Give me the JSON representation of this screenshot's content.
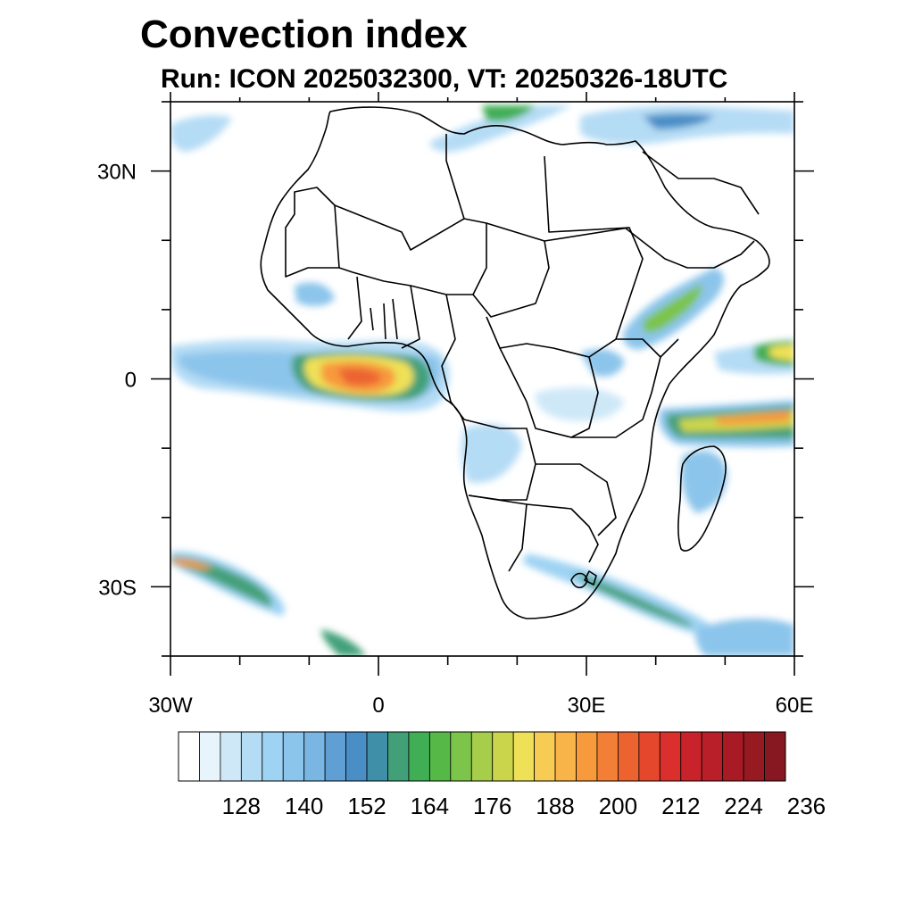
{
  "title": "Convection index",
  "subtitle": "Run: ICON 2025032300,  VT: 20250326-18UTC",
  "map": {
    "lon_range": [
      -30,
      60
    ],
    "lat_range": [
      -40,
      40
    ],
    "lat_labels": [
      {
        "value": 30,
        "text": "30N"
      },
      {
        "value": 0,
        "text": "0"
      },
      {
        "value": -30,
        "text": "30S"
      }
    ],
    "lon_labels": [
      {
        "value": -30,
        "text": "30W"
      },
      {
        "value": 0,
        "text": "0"
      },
      {
        "value": 30,
        "text": "30E"
      },
      {
        "value": 60,
        "text": "60E"
      }
    ],
    "minor_tick_step_deg": 10
  },
  "colorbar": {
    "colors": [
      "#ffffff",
      "#e8f4fc",
      "#cfe8f8",
      "#b5dcf5",
      "#9fd3f3",
      "#8cc5eb",
      "#79b6e3",
      "#5f9fd4",
      "#4a8ec6",
      "#3f8fa8",
      "#42a079",
      "#3fae55",
      "#56b947",
      "#7cc44a",
      "#a6ce4a",
      "#cad54c",
      "#eee157",
      "#f7cc55",
      "#f9b449",
      "#f79a3c",
      "#f27f35",
      "#ec6330",
      "#e5472c",
      "#da2f2c",
      "#c8232b",
      "#b91f29",
      "#a81b25",
      "#971a22",
      "#871720"
    ],
    "labels": [
      "128",
      "140",
      "152",
      "164",
      "176",
      "188",
      "200",
      "212",
      "224",
      "236"
    ]
  }
}
